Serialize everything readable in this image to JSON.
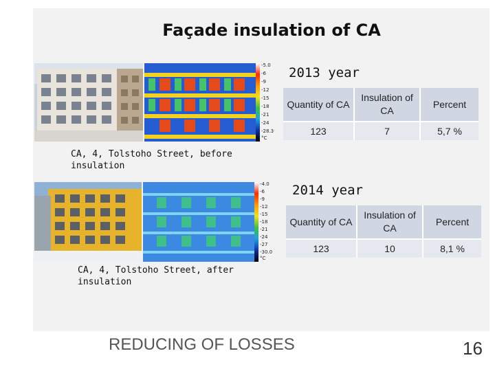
{
  "title": "Façade insulation of CA",
  "sections": [
    {
      "year": "2013 year",
      "caption_line1": "CA, 4, Tolstoho Street, before",
      "caption_line2": "insulation",
      "table": {
        "headers": [
          "Quantity of CA",
          "Insulation of CA",
          "Percent"
        ],
        "values": [
          "123",
          "7",
          "5,7 %"
        ]
      },
      "scale_labels": [
        "-5.0",
        "-6",
        "-9",
        "-12",
        "-15",
        "-18",
        "-21",
        "-24",
        "-28.3",
        "°C"
      ]
    },
    {
      "year": "2014 year",
      "caption_line1": "CA, 4, Tolstoho Street, after",
      "caption_line2": "insulation",
      "table": {
        "headers": [
          "Quantity of CA",
          "Insulation of CA",
          "Percent"
        ],
        "values": [
          "123",
          "10",
          "8,1 %"
        ]
      },
      "scale_labels": [
        "-4.0",
        "-6",
        "-9",
        "-12",
        "-15",
        "-18",
        "-21",
        "-24",
        "-27",
        "-30.0",
        "°C"
      ]
    }
  ],
  "footer": {
    "left_text": "REDUCING OF LOSSES",
    "page_number": "16"
  },
  "colors": {
    "header_cell": "#d0d6e2",
    "value_cell": "#e5e8ef",
    "panel": "#f2f2f2"
  }
}
